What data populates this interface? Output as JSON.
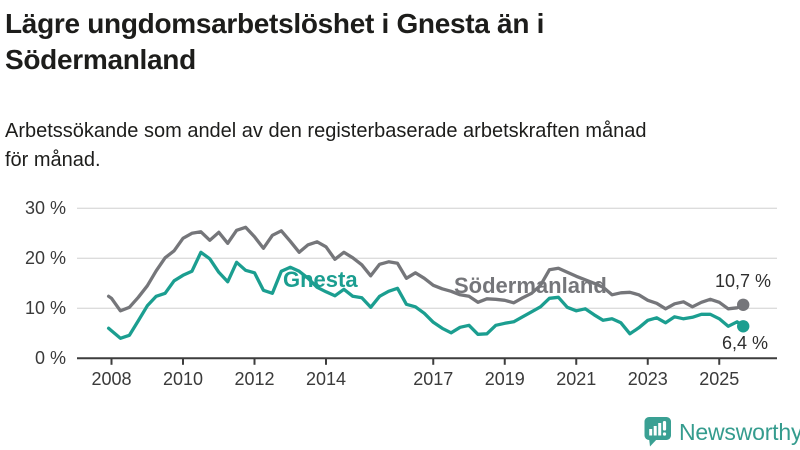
{
  "header": {
    "title_lines": [
      "Lägre ungdomsarbetslöshet i Gnesta än i",
      "Södermanland"
    ],
    "subtitle_lines": [
      "Arbetssökande som andel av den registerbaserade arbetskraften månad",
      "för månad."
    ]
  },
  "colors": {
    "gnesta": "#1b9e90",
    "sodermanland": "#75767a",
    "axis": "#3d3d3d",
    "grid": "#dcdcdc",
    "text": "#1d1d1b",
    "logo": "#359c8e"
  },
  "chart_data": {
    "type": "line",
    "title": "Lägre ungdomsarbetslöshet i Gnesta än i Södermanland",
    "subtitle": "Arbetssökande som andel av den registerbaserade arbetskraften månad för månad.",
    "ylim": [
      0,
      30
    ],
    "xlim": [
      2007.9,
      2025.75
    ],
    "grid": "horizontal",
    "y_ticks": [
      {
        "value": 0,
        "label": "0 %"
      },
      {
        "value": 10,
        "label": "10 %"
      },
      {
        "value": 20,
        "label": "20 %"
      },
      {
        "value": 30,
        "label": "30 %"
      }
    ],
    "x_ticks": [
      {
        "value": 2008,
        "label": "2008"
      },
      {
        "value": 2010,
        "label": "2010"
      },
      {
        "value": 2012,
        "label": "2012"
      },
      {
        "value": 2014,
        "label": "2014"
      },
      {
        "value": 2017,
        "label": "2017"
      },
      {
        "value": 2019,
        "label": "2019"
      },
      {
        "value": 2021,
        "label": "2021"
      },
      {
        "value": 2023,
        "label": "2023"
      },
      {
        "value": 2025,
        "label": "2025"
      }
    ],
    "x": [
      2007.92,
      2008.0,
      2008.25,
      2008.5,
      2008.75,
      2009.0,
      2009.25,
      2009.5,
      2009.75,
      2010.0,
      2010.25,
      2010.5,
      2010.75,
      2011.0,
      2011.25,
      2011.5,
      2011.75,
      2012.0,
      2012.25,
      2012.5,
      2012.75,
      2013.0,
      2013.25,
      2013.5,
      2013.75,
      2014.0,
      2014.25,
      2014.5,
      2014.75,
      2015.0,
      2015.25,
      2015.5,
      2015.75,
      2016.0,
      2016.25,
      2016.5,
      2016.75,
      2017.0,
      2017.25,
      2017.5,
      2017.75,
      2018.0,
      2018.25,
      2018.5,
      2018.75,
      2019.0,
      2019.25,
      2019.5,
      2019.75,
      2020.0,
      2020.25,
      2020.5,
      2020.75,
      2021.0,
      2021.25,
      2021.5,
      2021.75,
      2022.0,
      2022.25,
      2022.5,
      2022.75,
      2023.0,
      2023.25,
      2023.5,
      2023.75,
      2024.0,
      2024.25,
      2024.5,
      2024.75,
      2025.0,
      2025.25,
      2025.5,
      2025.67
    ],
    "series": [
      {
        "name": "Södermanland",
        "color": "#75767a",
        "end_label": "10,7 %",
        "end_value": 10.7,
        "values": [
          12.4,
          12.0,
          9.5,
          10.2,
          12.2,
          14.5,
          17.5,
          20.1,
          21.5,
          24.0,
          25.0,
          25.3,
          23.6,
          25.2,
          23.0,
          25.6,
          26.2,
          24.3,
          22.0,
          24.6,
          25.5,
          23.4,
          21.2,
          22.7,
          23.3,
          22.3,
          19.8,
          21.2,
          20.1,
          18.7,
          16.5,
          18.8,
          19.3,
          19.0,
          16.0,
          17.1,
          16.0,
          14.6,
          13.9,
          13.4,
          12.7,
          12.4,
          11.2,
          11.9,
          11.8,
          11.6,
          11.1,
          12.1,
          13.0,
          14.6,
          17.7,
          18.0,
          17.2,
          16.4,
          15.7,
          15.0,
          14.2,
          12.7,
          13.1,
          13.2,
          12.7,
          11.6,
          11.0,
          9.9,
          10.9,
          11.3,
          10.3,
          11.2,
          11.8,
          11.2,
          9.9,
          10.1,
          10.7
        ]
      },
      {
        "name": "Gnesta",
        "color": "#1b9e90",
        "end_label": "6,4 %",
        "end_value": 6.4,
        "values": [
          6.0,
          5.5,
          4.0,
          4.6,
          7.5,
          10.5,
          12.4,
          13.0,
          15.5,
          16.6,
          17.4,
          21.2,
          19.9,
          17.2,
          15.3,
          19.2,
          17.6,
          17.1,
          13.6,
          13.0,
          17.4,
          18.2,
          17.4,
          16.0,
          14.2,
          13.3,
          12.5,
          13.8,
          12.4,
          12.1,
          10.2,
          12.4,
          13.4,
          14.0,
          10.8,
          10.3,
          9.0,
          7.2,
          6.0,
          5.1,
          6.2,
          6.6,
          4.8,
          4.9,
          6.6,
          7.0,
          7.3,
          8.3,
          9.3,
          10.3,
          12.0,
          12.2,
          10.2,
          9.5,
          9.9,
          8.7,
          7.6,
          7.9,
          7.1,
          4.9,
          6.1,
          7.6,
          8.1,
          7.1,
          8.3,
          7.9,
          8.2,
          8.8,
          8.8,
          7.9,
          6.4,
          7.3,
          6.4
        ]
      }
    ],
    "legend_position": "inline-labels"
  },
  "footer": {
    "logo_text": "Newsworthy"
  }
}
